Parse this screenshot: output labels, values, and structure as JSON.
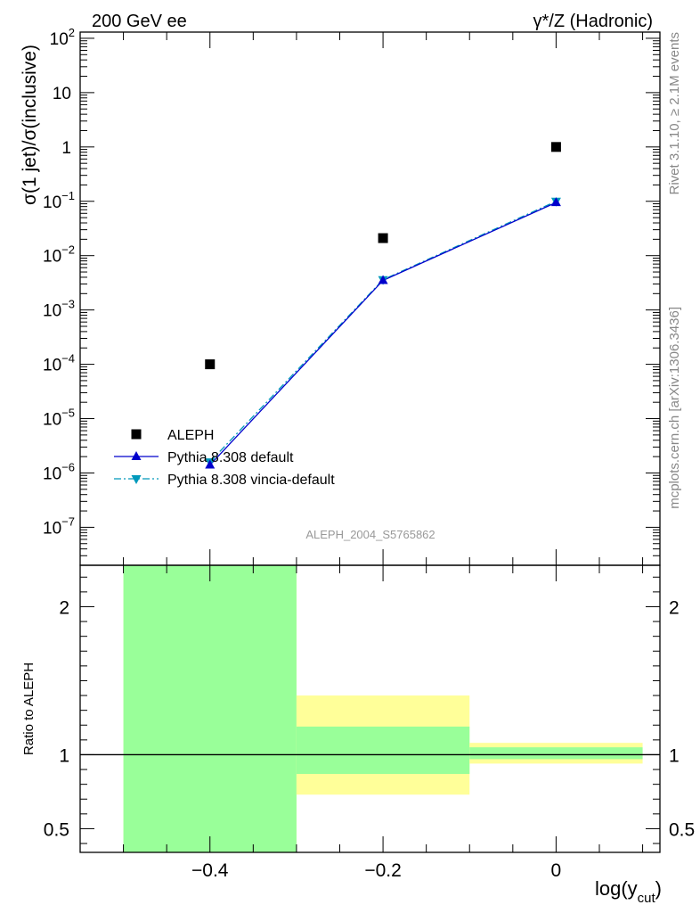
{
  "header": {
    "left_title": "200 GeV ee",
    "right_title": "γ*/Z (Hadronic)"
  },
  "side_labels": {
    "rivet": "Rivet 3.1.10, ≥ 2.1M events",
    "mcplots": "mcplots.cern.ch [arXiv:1306.3436]"
  },
  "watermark": "ALEPH_2004_S5765862",
  "colors": {
    "aleph": "#000000",
    "pythia_default": "#0000cc",
    "pythia_vincia": "#0099bb",
    "band_stat": "#99ff99",
    "band_total": "#ffff99"
  },
  "chart_data": [
    {
      "type": "scatter",
      "panel": "main",
      "ylabel": "σ(1 jet)/σ(inclusive)",
      "yscale": "log",
      "ylim": [
        2e-08,
        130
      ],
      "xlim": [
        -0.55,
        0.12
      ],
      "y_ticks": [
        {
          "v": 1e-07,
          "base": "10",
          "exp": "−7"
        },
        {
          "v": 1e-06,
          "base": "10",
          "exp": "−6"
        },
        {
          "v": 1e-05,
          "base": "10",
          "exp": "−5"
        },
        {
          "v": 0.0001,
          "base": "10",
          "exp": "−4"
        },
        {
          "v": 0.001,
          "base": "10",
          "exp": "−3"
        },
        {
          "v": 0.01,
          "base": "10",
          "exp": "−2"
        },
        {
          "v": 0.1,
          "base": "10",
          "exp": "−1"
        },
        {
          "v": 1,
          "base": "1",
          "exp": ""
        },
        {
          "v": 10,
          "base": "10",
          "exp": ""
        },
        {
          "v": 100,
          "base": "10",
          "exp": "2"
        }
      ],
      "legend": {
        "placement": "bottom-left",
        "entries": [
          "ALEPH",
          "Pythia 8.308 default",
          "Pythia 8.308 vincia-default"
        ]
      },
      "series": [
        {
          "name": "ALEPH",
          "marker": "square",
          "x": [
            -0.4,
            -0.2,
            0.0
          ],
          "y": [
            0.0001,
            0.021,
            1.0
          ]
        },
        {
          "name": "Pythia 8.308 default",
          "marker": "triangle-up",
          "x": [
            -0.4,
            -0.2,
            0.0
          ],
          "y": [
            1.4e-06,
            0.0035,
            0.095
          ]
        },
        {
          "name": "Pythia 8.308 vincia-default",
          "marker": "triangle-down",
          "x": [
            -0.4,
            -0.2,
            0.0
          ],
          "y": [
            1.6e-06,
            0.0036,
            0.1
          ]
        }
      ]
    },
    {
      "type": "area",
      "panel": "ratio",
      "ylabel": "Ratio to ALEPH",
      "xlabel": "log(y_cut)",
      "xlabel_main": "log(y",
      "xlabel_sub": "cut",
      "xlabel_close": ")",
      "ylim": [
        0.34,
        2.28
      ],
      "xlim": [
        -0.55,
        0.12
      ],
      "x_ticks": [
        {
          "v": -0.4,
          "label": "−0.4"
        },
        {
          "v": -0.2,
          "label": "−0.2"
        },
        {
          "v": 0.0,
          "label": "0"
        }
      ],
      "y_ticks": [
        {
          "v": 0.5,
          "label": "0.5"
        },
        {
          "v": 1,
          "label": "1"
        },
        {
          "v": 2,
          "label": "2"
        }
      ],
      "bands": [
        {
          "x_low": -0.5,
          "x_high": -0.3,
          "stat": [
            0.34,
            2.28
          ],
          "total": [
            0.34,
            2.28
          ]
        },
        {
          "x_low": -0.3,
          "x_high": -0.1,
          "stat": [
            0.87,
            1.19
          ],
          "total": [
            0.73,
            1.4
          ]
        },
        {
          "x_low": -0.1,
          "x_high": 0.1,
          "stat": [
            0.97,
            1.05
          ],
          "total": [
            0.94,
            1.08
          ]
        }
      ],
      "reference_line": 1
    }
  ]
}
